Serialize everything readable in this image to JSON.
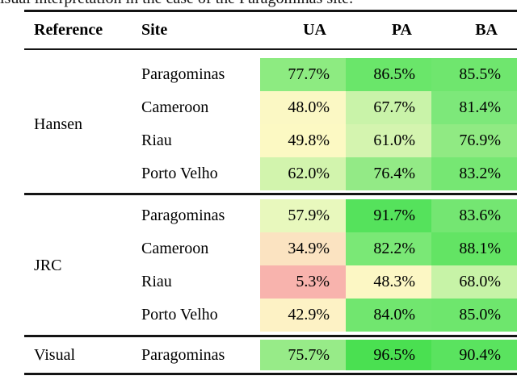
{
  "caption_fragment": "isual interpretation in the case of the Paragominas site.",
  "table": {
    "headers": {
      "reference": "Reference",
      "site": "Site",
      "ua": "UA",
      "pa": "PA",
      "ba": "BA"
    },
    "groups": [
      {
        "reference": "Hansen",
        "rows": [
          {
            "site": "Paragominas",
            "cells": [
              {
                "value": "77.7%",
                "color": "#8deb81"
              },
              {
                "value": "86.5%",
                "color": "#6ae66a"
              },
              {
                "value": "85.5%",
                "color": "#6fe66e"
              }
            ]
          },
          {
            "site": "Cameroon",
            "cells": [
              {
                "value": "48.0%",
                "color": "#fbf8c4"
              },
              {
                "value": "67.7%",
                "color": "#c9f3a9"
              },
              {
                "value": "81.4%",
                "color": "#7de87a"
              }
            ]
          },
          {
            "site": "Riau",
            "cells": [
              {
                "value": "49.8%",
                "color": "#fcf9c3"
              },
              {
                "value": "61.0%",
                "color": "#d4f4af"
              },
              {
                "value": "76.9%",
                "color": "#90ea83"
              }
            ]
          },
          {
            "site": "Porto Velho",
            "cells": [
              {
                "value": "62.0%",
                "color": "#d2f4ad"
              },
              {
                "value": "76.4%",
                "color": "#93ea86"
              },
              {
                "value": "83.2%",
                "color": "#76e773"
              }
            ]
          }
        ]
      },
      {
        "reference": "JRC",
        "rows": [
          {
            "site": "Paragominas",
            "cells": [
              {
                "value": "57.9%",
                "color": "#e8f8bd"
              },
              {
                "value": "91.7%",
                "color": "#55e25c"
              },
              {
                "value": "83.6%",
                "color": "#74e672"
              }
            ]
          },
          {
            "site": "Cameroon",
            "cells": [
              {
                "value": "34.9%",
                "color": "#fbe3c1"
              },
              {
                "value": "82.2%",
                "color": "#7ae876"
              },
              {
                "value": "88.1%",
                "color": "#63e464"
              }
            ]
          },
          {
            "site": "Riau",
            "cells": [
              {
                "value": "5.3%",
                "color": "#f8b3ad"
              },
              {
                "value": "48.3%",
                "color": "#fcf7c4"
              },
              {
                "value": "68.0%",
                "color": "#c7f3a7"
              }
            ]
          },
          {
            "site": "Porto Velho",
            "cells": [
              {
                "value": "42.9%",
                "color": "#fdf2c5"
              },
              {
                "value": "84.0%",
                "color": "#71e66f"
              },
              {
                "value": "85.0%",
                "color": "#6ee66d"
              }
            ]
          }
        ]
      },
      {
        "reference": "Visual",
        "rows": [
          {
            "site": "Paragominas",
            "cells": [
              {
                "value": "75.7%",
                "color": "#97eb88"
              },
              {
                "value": "96.5%",
                "color": "#4ae051"
              },
              {
                "value": "90.4%",
                "color": "#5ae35f"
              }
            ]
          }
        ]
      }
    ]
  },
  "colors": {
    "rule": "#141414",
    "text": "#000000",
    "scale_low": "#f8b3ad",
    "scale_mid": "#fcf9c3",
    "scale_high": "#4ae051"
  }
}
